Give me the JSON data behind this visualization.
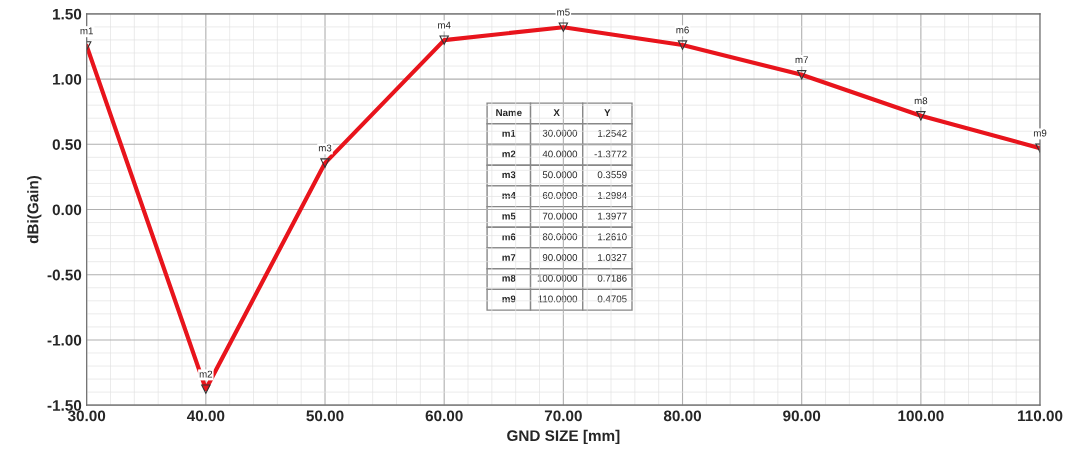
{
  "chart_data": {
    "type": "line",
    "xlabel": "GND SIZE [mm]",
    "ylabel": "dBi(Gain)",
    "x": [
      30,
      40,
      50,
      60,
      70,
      80,
      90,
      100,
      110
    ],
    "series": [
      {
        "color": "#e8141c",
        "values": [
          1.2542,
          -1.3772,
          0.3559,
          1.2984,
          1.3977,
          1.261,
          1.0327,
          0.7186,
          0.4705
        ]
      }
    ],
    "xlim": [
      30,
      110
    ],
    "ylim": [
      -1.5,
      1.5
    ],
    "xticks": [
      {
        "value": 30,
        "label": "30.00"
      },
      {
        "value": 40,
        "label": "40.00"
      },
      {
        "value": 50,
        "label": "50.00"
      },
      {
        "value": 60,
        "label": "60.00"
      },
      {
        "value": 70,
        "label": "70.00"
      },
      {
        "value": 80,
        "label": "80.00"
      },
      {
        "value": 90,
        "label": "90.00"
      },
      {
        "value": 100,
        "label": "100.00"
      },
      {
        "value": 110,
        "label": "110.00"
      }
    ],
    "yticks": [
      {
        "value": -1.5,
        "label": "-1.50"
      },
      {
        "value": -1.0,
        "label": "-1.00"
      },
      {
        "value": -0.5,
        "label": "-0.50"
      },
      {
        "value": 0,
        "label": "0.00"
      },
      {
        "value": 0.5,
        "label": "0.50"
      },
      {
        "value": 1.0,
        "label": "1.00"
      },
      {
        "value": 1.5,
        "label": "1.50"
      }
    ],
    "grid": true,
    "marker": "triangle",
    "line_style": "solid",
    "annotations": [
      "Name",
      "X",
      "Y",
      "m1",
      "30.0000",
      "1.2542",
      "m2",
      "40.0000",
      "-1.3772",
      "m3",
      "50.0000",
      "0.3559",
      "m4",
      "60.0000",
      "1.2984",
      "m5",
      "70.0000",
      "1.3977",
      "m6",
      "80.0000",
      "1.2610",
      "m7",
      "90.0000",
      "1.0327",
      "m8",
      "100.0000",
      "0.7186",
      "m9",
      "110.0000",
      "0.4705",
      {
        "text": "m1",
        "x": 30,
        "y": 1.2542
      },
      {
        "text": "m2",
        "x": 40,
        "y": -1.3772
      },
      {
        "text": "m3",
        "x": 50,
        "y": 0.3559
      },
      {
        "text": "m4",
        "x": 60,
        "y": 1.2984
      },
      {
        "text": "m5",
        "x": 70,
        "y": 1.3977
      },
      {
        "text": "m6",
        "x": 80,
        "y": 1.261
      },
      {
        "text": "m7",
        "x": 90,
        "y": 1.0327
      },
      {
        "text": "m8",
        "x": 100,
        "y": 0.7186
      },
      {
        "text": "m9",
        "x": 110,
        "y": 0.4705
      }
    ]
  }
}
